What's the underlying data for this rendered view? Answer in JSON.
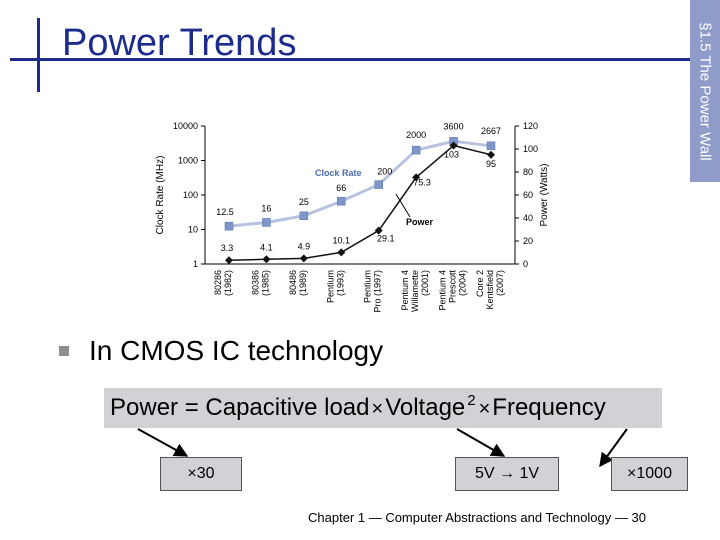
{
  "slide": {
    "title": "Power Trends",
    "section_tab": "§1.5 The Power Wall",
    "bullet": "In CMOS IC technology",
    "formula": {
      "power": "Power",
      "eq": "=",
      "cap": "Capacitive load",
      "times1": "×",
      "volt": "Voltage",
      "exp": "2",
      "times2": "×",
      "freq": "Frequency"
    },
    "callouts": {
      "cap": "×30",
      "volt": "5V → 1V",
      "freq": "×1000"
    },
    "footer": "Chapter 1 — Computer Abstractions and Technology — 30"
  },
  "chart_data": {
    "type": "line",
    "categories": [
      "80286 (1982)",
      "80386 (1985)",
      "80486 (1989)",
      "Pentium (1993)",
      "Pentium Pro (1997)",
      "Pentium 4 Willamette (2001)",
      "Pentium 4 Prescott (2004)",
      "Core 2 Kentsfield (2007)"
    ],
    "category_lines": [
      [
        "80286",
        "(1982)"
      ],
      [
        "80386",
        "(1985)"
      ],
      [
        "80486",
        "(1989)"
      ],
      [
        "Pentium",
        "(1993)"
      ],
      [
        "Pentium",
        "Pro (1997)"
      ],
      [
        "Pentium 4",
        "Willamette",
        "(2001)"
      ],
      [
        "Pentium 4",
        "Prescott",
        "(2004)"
      ],
      [
        "Core 2",
        "Kentsfield",
        "(2007)"
      ]
    ],
    "series": [
      {
        "name": "Clock Rate",
        "axis": "left",
        "marker": "square",
        "color": "#7f96c9",
        "values": [
          12.5,
          16,
          25,
          66,
          200,
          2000,
          3600,
          2667
        ],
        "labels": [
          "12.5",
          "16",
          "25",
          "66",
          "200",
          "2000",
          "3600",
          "2667"
        ]
      },
      {
        "name": "Power",
        "axis": "right",
        "marker": "diamond",
        "color": "#111111",
        "values": [
          3.3,
          4.1,
          4.9,
          10.1,
          29.1,
          75.3,
          103,
          95
        ],
        "labels": [
          "3.3",
          "4.1",
          "4.9",
          "10.1",
          "29.1",
          "75.3",
          "103",
          "95"
        ]
      }
    ],
    "ylabel": "Clock Rate (MHz)",
    "ylabel_right": "Power (Watts)",
    "y_scale": "log",
    "ylim": [
      1,
      10000
    ],
    "yticks": [
      "1",
      "10",
      "100",
      "1000",
      "10000"
    ],
    "ylim_right": [
      0,
      120
    ],
    "yticks_right": [
      "0",
      "20",
      "40",
      "60",
      "80",
      "100",
      "120"
    ],
    "grid": false
  }
}
